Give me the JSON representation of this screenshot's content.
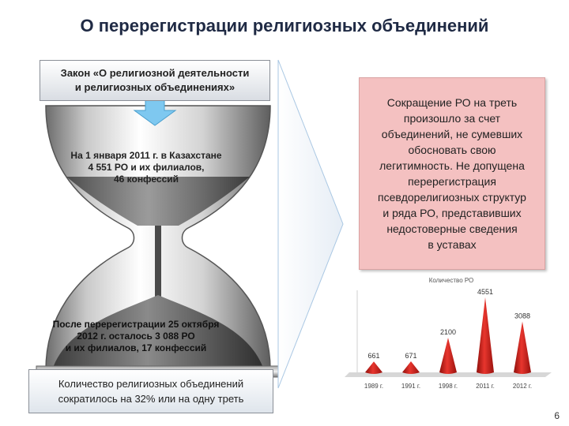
{
  "slide": {
    "title": "О перерегистрации религиозных объединений",
    "page_number": "6"
  },
  "hourglass": {
    "law_box": {
      "line1": "Закон «О религиозной деятельности",
      "line2": "и религиозных объединениях»"
    },
    "jan2011": {
      "line1": "На 1 января 2011 г. в Казахстане",
      "line2": "4 551 РО и их филиалов,",
      "line3": "46 конфессий"
    },
    "after2012": {
      "line1": "После перерегистрации 25 октября",
      "line2": "2012 г. осталось 3 088  РО",
      "line3": "и их филиалов, 17 конфессий"
    },
    "summary_box": {
      "line1": "Количество религиозных объединений",
      "line2": "сократилось на 32% или на одну треть"
    }
  },
  "reduction_box": {
    "lines": [
      "Сокращение РО на треть",
      "произошло за счет",
      "объединений, не сумевших",
      "обосновать свою",
      "легитимность. Не допущена",
      "перерегистрация",
      "псевдорелигиозных структур",
      "и ряда РО, представивших",
      "недостоверные сведения",
      "в уставах"
    ]
  },
  "colors": {
    "accent_blue": "#7ec8f0",
    "reduction_pink": "#f4c1c1",
    "cone_red": "#d8231e"
  },
  "chart_data": {
    "type": "bar",
    "title": "Количество РО",
    "categories": [
      "1989 г.",
      "1991 г.",
      "1998 г.",
      "2011 г.",
      "2012 г."
    ],
    "values": [
      661,
      671,
      2100,
      4551,
      3088
    ],
    "ylim": [
      0,
      4600
    ],
    "grid": false,
    "legend": "none",
    "series": [
      {
        "values": [
          661,
          671,
          2100,
          4551,
          3088
        ]
      }
    ]
  }
}
